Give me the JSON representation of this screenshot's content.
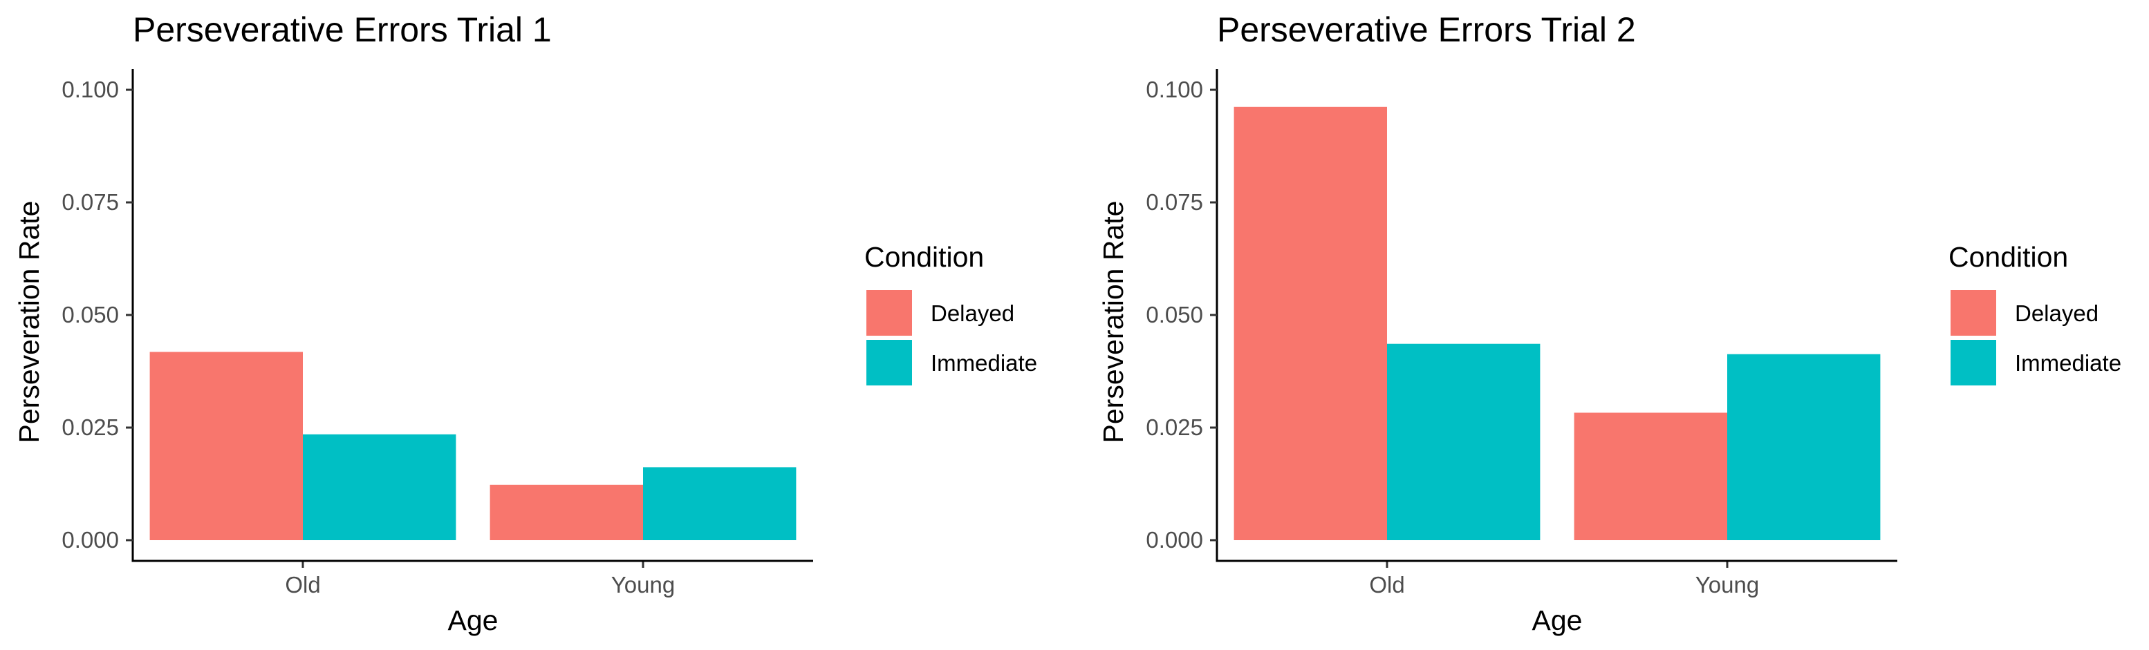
{
  "chart_data": [
    {
      "type": "bar",
      "title": "Perseverative Errors Trial 1",
      "xlabel": "Age",
      "ylabel": "Perseveration Rate",
      "categories": [
        "Old",
        "Young"
      ],
      "series": [
        {
          "name": "Delayed",
          "values": [
            0.0418,
            0.0123
          ],
          "color": "#F8766D"
        },
        {
          "name": "Immediate",
          "values": [
            0.0235,
            0.0162
          ],
          "color": "#00BFC4"
        }
      ],
      "ylim": [
        0,
        0.1
      ],
      "yticks": [
        "0.000",
        "0.025",
        "0.050",
        "0.075",
        "0.100"
      ],
      "legend": {
        "title": "Condition",
        "placement": "right"
      },
      "grid": false
    },
    {
      "type": "bar",
      "title": "Perseverative Errors Trial 2",
      "xlabel": "Age",
      "ylabel": "Perseveration Rate",
      "categories": [
        "Old",
        "Young"
      ],
      "series": [
        {
          "name": "Delayed",
          "values": [
            0.0962,
            0.0283
          ],
          "color": "#F8766D"
        },
        {
          "name": "Immediate",
          "values": [
            0.0436,
            0.0413
          ],
          "color": "#00BFC4"
        }
      ],
      "ylim": [
        0,
        0.1
      ],
      "yticks": [
        "0.000",
        "0.025",
        "0.050",
        "0.075",
        "0.100"
      ],
      "legend": {
        "title": "Condition",
        "placement": "right"
      },
      "grid": false
    }
  ]
}
